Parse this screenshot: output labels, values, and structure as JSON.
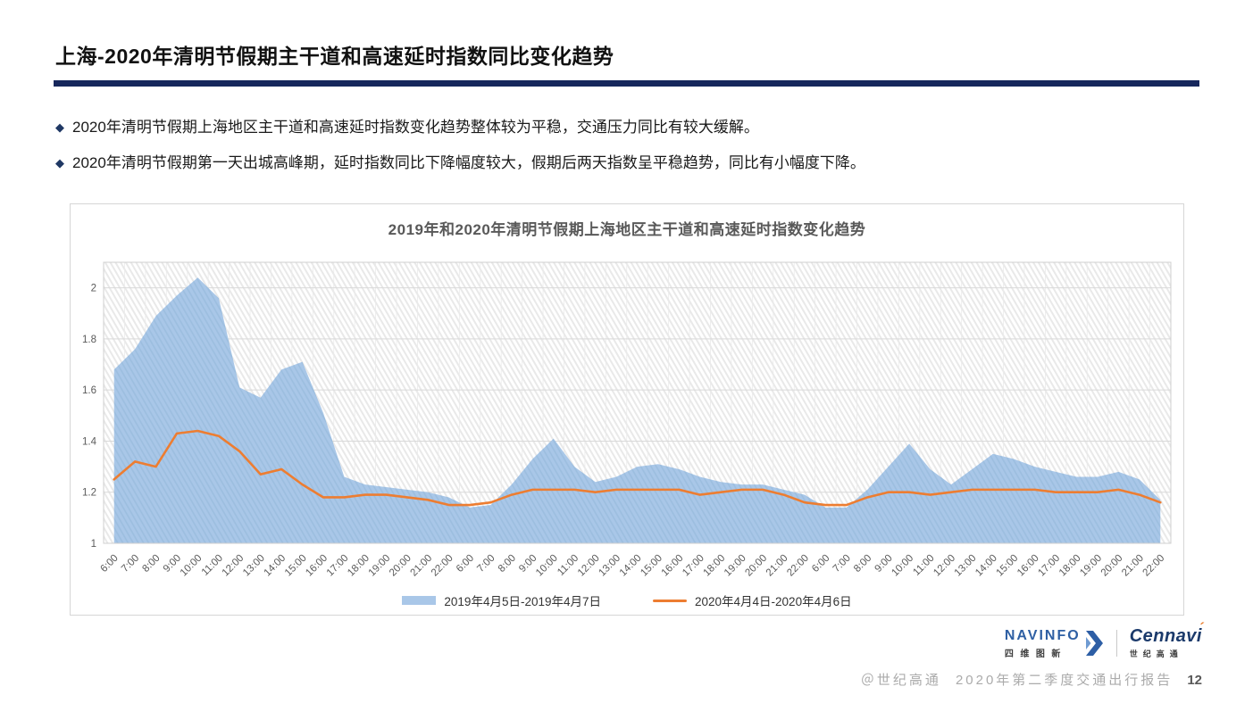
{
  "slide": {
    "title": "上海-2020年清明节假期主干道和高速延时指数同比变化趋势",
    "accent_color": "#16275C",
    "bullets": [
      "2020年清明节假期上海地区主干道和高速延时指数变化趋势整体较为平稳，交通压力同比有较大缓解。",
      "2020年清明节假期第一天出城高峰期，延时指数同比下降幅度较大，假期后两天指数呈平稳趋势，同比有小幅度下降。"
    ]
  },
  "chart_data": {
    "type": "area+line",
    "title": "2019年和2020年清明节假期上海地区主干道和高速延时指数变化趋势",
    "x_times": [
      "6:00",
      "7:00",
      "8:00",
      "9:00",
      "10:00",
      "11:00",
      "12:00",
      "13:00",
      "14:00",
      "15:00",
      "16:00",
      "17:00",
      "18:00",
      "19:00",
      "20:00",
      "21:00",
      "22:00"
    ],
    "days": 3,
    "ylim": [
      1,
      2.1
    ],
    "yticks": [
      1,
      1.2,
      1.4,
      1.6,
      1.8,
      2
    ],
    "grid": "horizontal+vertical",
    "legend_position": "bottom",
    "plot_bg": "diagonal-hatch",
    "colors": {
      "area": "#A9C7E8",
      "area_stripe": "#9CBEDF",
      "line": "#ED7D31",
      "gridline": "#D9D9D9",
      "hatch": "#E9E9E9",
      "tick_text": "#595959"
    },
    "series": [
      {
        "name": "2019年4月5日-2019年4月7日",
        "type": "area",
        "values": [
          1.68,
          1.76,
          1.89,
          1.97,
          2.04,
          1.96,
          1.61,
          1.57,
          1.68,
          1.71,
          1.51,
          1.26,
          1.23,
          1.22,
          1.21,
          1.2,
          1.18,
          1.14,
          1.15,
          1.23,
          1.33,
          1.41,
          1.3,
          1.24,
          1.26,
          1.3,
          1.31,
          1.29,
          1.26,
          1.24,
          1.23,
          1.23,
          1.21,
          1.19,
          1.14,
          1.14,
          1.21,
          1.3,
          1.39,
          1.29,
          1.23,
          1.29,
          1.35,
          1.33,
          1.3,
          1.28,
          1.26,
          1.26,
          1.28,
          1.25,
          1.17
        ]
      },
      {
        "name": "2020年4月4日-2020年4月6日",
        "type": "line",
        "values": [
          1.25,
          1.32,
          1.3,
          1.43,
          1.44,
          1.42,
          1.36,
          1.27,
          1.29,
          1.23,
          1.18,
          1.18,
          1.19,
          1.19,
          1.18,
          1.17,
          1.15,
          1.15,
          1.16,
          1.19,
          1.21,
          1.21,
          1.21,
          1.2,
          1.21,
          1.21,
          1.21,
          1.21,
          1.19,
          1.2,
          1.21,
          1.21,
          1.19,
          1.16,
          1.15,
          1.15,
          1.18,
          1.2,
          1.2,
          1.19,
          1.2,
          1.21,
          1.21,
          1.21,
          1.21,
          1.2,
          1.2,
          1.2,
          1.21,
          1.19,
          1.16
        ]
      }
    ]
  },
  "footer": {
    "navinfo_logo": {
      "wordmark": "NAVINFO",
      "subtext": "四维图新"
    },
    "cennavi_logo": {
      "wordmark": "Cennavi",
      "accent": "´",
      "subtext": "世纪高通"
    },
    "credit_prefix": "＠世纪高通",
    "report_title": "2020年第二季度交通出行报告",
    "page_number": "12"
  }
}
